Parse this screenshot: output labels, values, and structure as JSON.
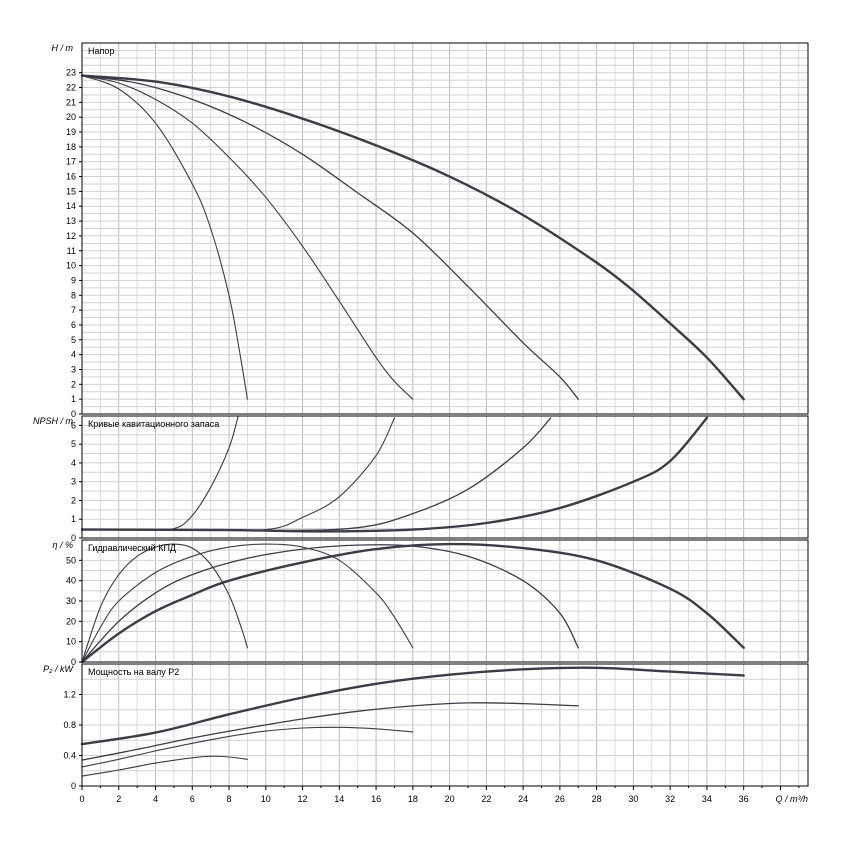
{
  "chart_data": [
    {
      "type": "line",
      "title": "Напор",
      "ylabel": "H / m",
      "ylim": [
        0,
        25
      ],
      "yticks": [
        0,
        1,
        2,
        3,
        4,
        5,
        6,
        7,
        8,
        9,
        10,
        11,
        12,
        13,
        14,
        15,
        16,
        17,
        18,
        19,
        20,
        21,
        22,
        23
      ],
      "series": [
        {
          "values": [
            [
              0,
              22.8
            ],
            [
              2,
              21.9
            ],
            [
              4,
              19.6
            ],
            [
              6,
              15.5
            ],
            [
              7,
              12.5
            ],
            [
              8,
              8
            ],
            [
              8.6,
              4
            ],
            [
              9,
              1
            ]
          ]
        },
        {
          "values": [
            [
              0,
              22.8
            ],
            [
              2,
              22.3
            ],
            [
              4,
              21.2
            ],
            [
              6,
              19.6
            ],
            [
              8,
              17.3
            ],
            [
              10,
              14.6
            ],
            [
              12,
              11.3
            ],
            [
              14,
              7.6
            ],
            [
              16,
              3.8
            ],
            [
              17,
              2.2
            ],
            [
              18,
              1
            ]
          ]
        },
        {
          "values": [
            [
              0,
              22.8
            ],
            [
              3,
              22.3
            ],
            [
              6,
              21.2
            ],
            [
              9,
              19.6
            ],
            [
              12,
              17.5
            ],
            [
              15,
              14.9
            ],
            [
              18,
              12.2
            ],
            [
              21,
              8.6
            ],
            [
              24,
              4.8
            ],
            [
              26,
              2.5
            ],
            [
              27,
              1
            ]
          ]
        },
        {
          "values": [
            [
              0,
              22.8
            ],
            [
              4,
              22.4
            ],
            [
              8,
              21.4
            ],
            [
              12,
              19.9
            ],
            [
              16,
              18.1
            ],
            [
              20,
              16.0
            ],
            [
              24,
              13.4
            ],
            [
              28,
              10.2
            ],
            [
              30,
              8.3
            ],
            [
              32,
              6.1
            ],
            [
              34,
              3.8
            ],
            [
              36,
              1
            ]
          ]
        }
      ]
    },
    {
      "type": "line",
      "title": "Кривые кавитационного запаса",
      "ylabel": "NPSH / m",
      "ylim": [
        0,
        6.5
      ],
      "yticks": [
        0,
        1,
        2,
        3,
        4,
        5,
        6
      ],
      "series": [
        {
          "values": [
            [
              0,
              0.45
            ],
            [
              3,
              0.45
            ],
            [
              5,
              0.5
            ],
            [
              6,
              1.2
            ],
            [
              7,
              2.7
            ],
            [
              8,
              4.8
            ],
            [
              8.5,
              6.5
            ]
          ]
        },
        {
          "values": [
            [
              0,
              0.45
            ],
            [
              5,
              0.45
            ],
            [
              10,
              0.45
            ],
            [
              12,
              1.1
            ],
            [
              14,
              2.2
            ],
            [
              16,
              4.4
            ],
            [
              17,
              6.4
            ]
          ]
        },
        {
          "values": [
            [
              0,
              0.45
            ],
            [
              10,
              0.4
            ],
            [
              15,
              0.55
            ],
            [
              18,
              1.3
            ],
            [
              21,
              2.6
            ],
            [
              24,
              4.8
            ],
            [
              25.5,
              6.4
            ]
          ]
        },
        {
          "values": [
            [
              0,
              0.45
            ],
            [
              8,
              0.42
            ],
            [
              13,
              0.35
            ],
            [
              18,
              0.45
            ],
            [
              22,
              0.8
            ],
            [
              26,
              1.6
            ],
            [
              30,
              3.0
            ],
            [
              32,
              4.1
            ],
            [
              34,
              6.4
            ]
          ]
        }
      ]
    },
    {
      "type": "line",
      "title": "Гидравлический КПД",
      "ylabel": "η / %",
      "ylim": [
        0,
        60
      ],
      "yticks": [
        0,
        10,
        20,
        30,
        40,
        50
      ],
      "series": [
        {
          "values": [
            [
              0,
              0
            ],
            [
              1,
              27
            ],
            [
              2,
              43
            ],
            [
              3,
              52
            ],
            [
              4,
              56.5
            ],
            [
              5,
              58
            ],
            [
              6,
              56
            ],
            [
              7,
              48
            ],
            [
              8,
              33
            ],
            [
              8.7,
              16
            ],
            [
              9,
              7
            ]
          ]
        },
        {
          "values": [
            [
              0,
              0
            ],
            [
              1,
              17
            ],
            [
              2,
              30
            ],
            [
              4,
              44
            ],
            [
              6,
              52
            ],
            [
              8,
              56.5
            ],
            [
              10,
              58
            ],
            [
              12,
              56.5
            ],
            [
              14,
              50
            ],
            [
              16,
              34
            ],
            [
              17,
              22
            ],
            [
              18,
              7
            ]
          ]
        },
        {
          "values": [
            [
              0,
              0
            ],
            [
              2,
              20
            ],
            [
              4,
              34
            ],
            [
              6,
              43
            ],
            [
              9,
              51
            ],
            [
              12,
              55.5
            ],
            [
              15,
              57.5
            ],
            [
              18,
              57
            ],
            [
              21,
              52
            ],
            [
              24,
              40
            ],
            [
              26,
              24
            ],
            [
              27,
              7
            ]
          ]
        },
        {
          "values": [
            [
              0,
              0
            ],
            [
              2,
              14
            ],
            [
              4,
              25
            ],
            [
              6,
              33
            ],
            [
              8,
              40
            ],
            [
              12,
              49
            ],
            [
              16,
              55.5
            ],
            [
              20,
              58
            ],
            [
              24,
              56
            ],
            [
              28,
              50
            ],
            [
              32,
              36
            ],
            [
              34,
              24
            ],
            [
              36,
              7
            ]
          ]
        }
      ]
    },
    {
      "type": "line",
      "title": "Мощность на валу P2",
      "ylabel": "P₂ / kW",
      "xlabel": "Q / m³/h",
      "ylim": [
        0,
        1.6
      ],
      "yticks": [
        0,
        0.4,
        0.8,
        1.2
      ],
      "series": [
        {
          "values": [
            [
              0,
              0.13
            ],
            [
              2,
              0.21
            ],
            [
              4,
              0.3
            ],
            [
              6,
              0.37
            ],
            [
              7,
              0.39
            ],
            [
              8,
              0.38
            ],
            [
              9,
              0.35
            ]
          ]
        },
        {
          "values": [
            [
              0,
              0.25
            ],
            [
              2,
              0.35
            ],
            [
              4,
              0.46
            ],
            [
              6,
              0.56
            ],
            [
              8,
              0.65
            ],
            [
              10,
              0.72
            ],
            [
              12,
              0.76
            ],
            [
              14,
              0.77
            ],
            [
              16,
              0.75
            ],
            [
              18,
              0.71
            ]
          ]
        },
        {
          "values": [
            [
              0,
              0.34
            ],
            [
              3,
              0.48
            ],
            [
              6,
              0.63
            ],
            [
              9,
              0.76
            ],
            [
              12,
              0.88
            ],
            [
              15,
              0.98
            ],
            [
              18,
              1.05
            ],
            [
              21,
              1.09
            ],
            [
              24,
              1.08
            ],
            [
              27,
              1.05
            ]
          ]
        },
        {
          "values": [
            [
              0,
              0.55
            ],
            [
              4,
              0.7
            ],
            [
              8,
              0.94
            ],
            [
              12,
              1.16
            ],
            [
              16,
              1.34
            ],
            [
              20,
              1.46
            ],
            [
              24,
              1.53
            ],
            [
              28,
              1.55
            ],
            [
              32,
              1.5
            ],
            [
              36,
              1.45
            ]
          ]
        }
      ]
    }
  ],
  "x_axis": {
    "xlim": [
      0,
      39.5
    ],
    "tick_labels": [
      "0",
      "2",
      "4",
      "6",
      "8",
      "10",
      "12",
      "14",
      "16",
      "18",
      "20",
      "22",
      "24",
      "26",
      "28",
      "30",
      "32",
      "34",
      "36"
    ],
    "label": "Q / m³/h"
  }
}
